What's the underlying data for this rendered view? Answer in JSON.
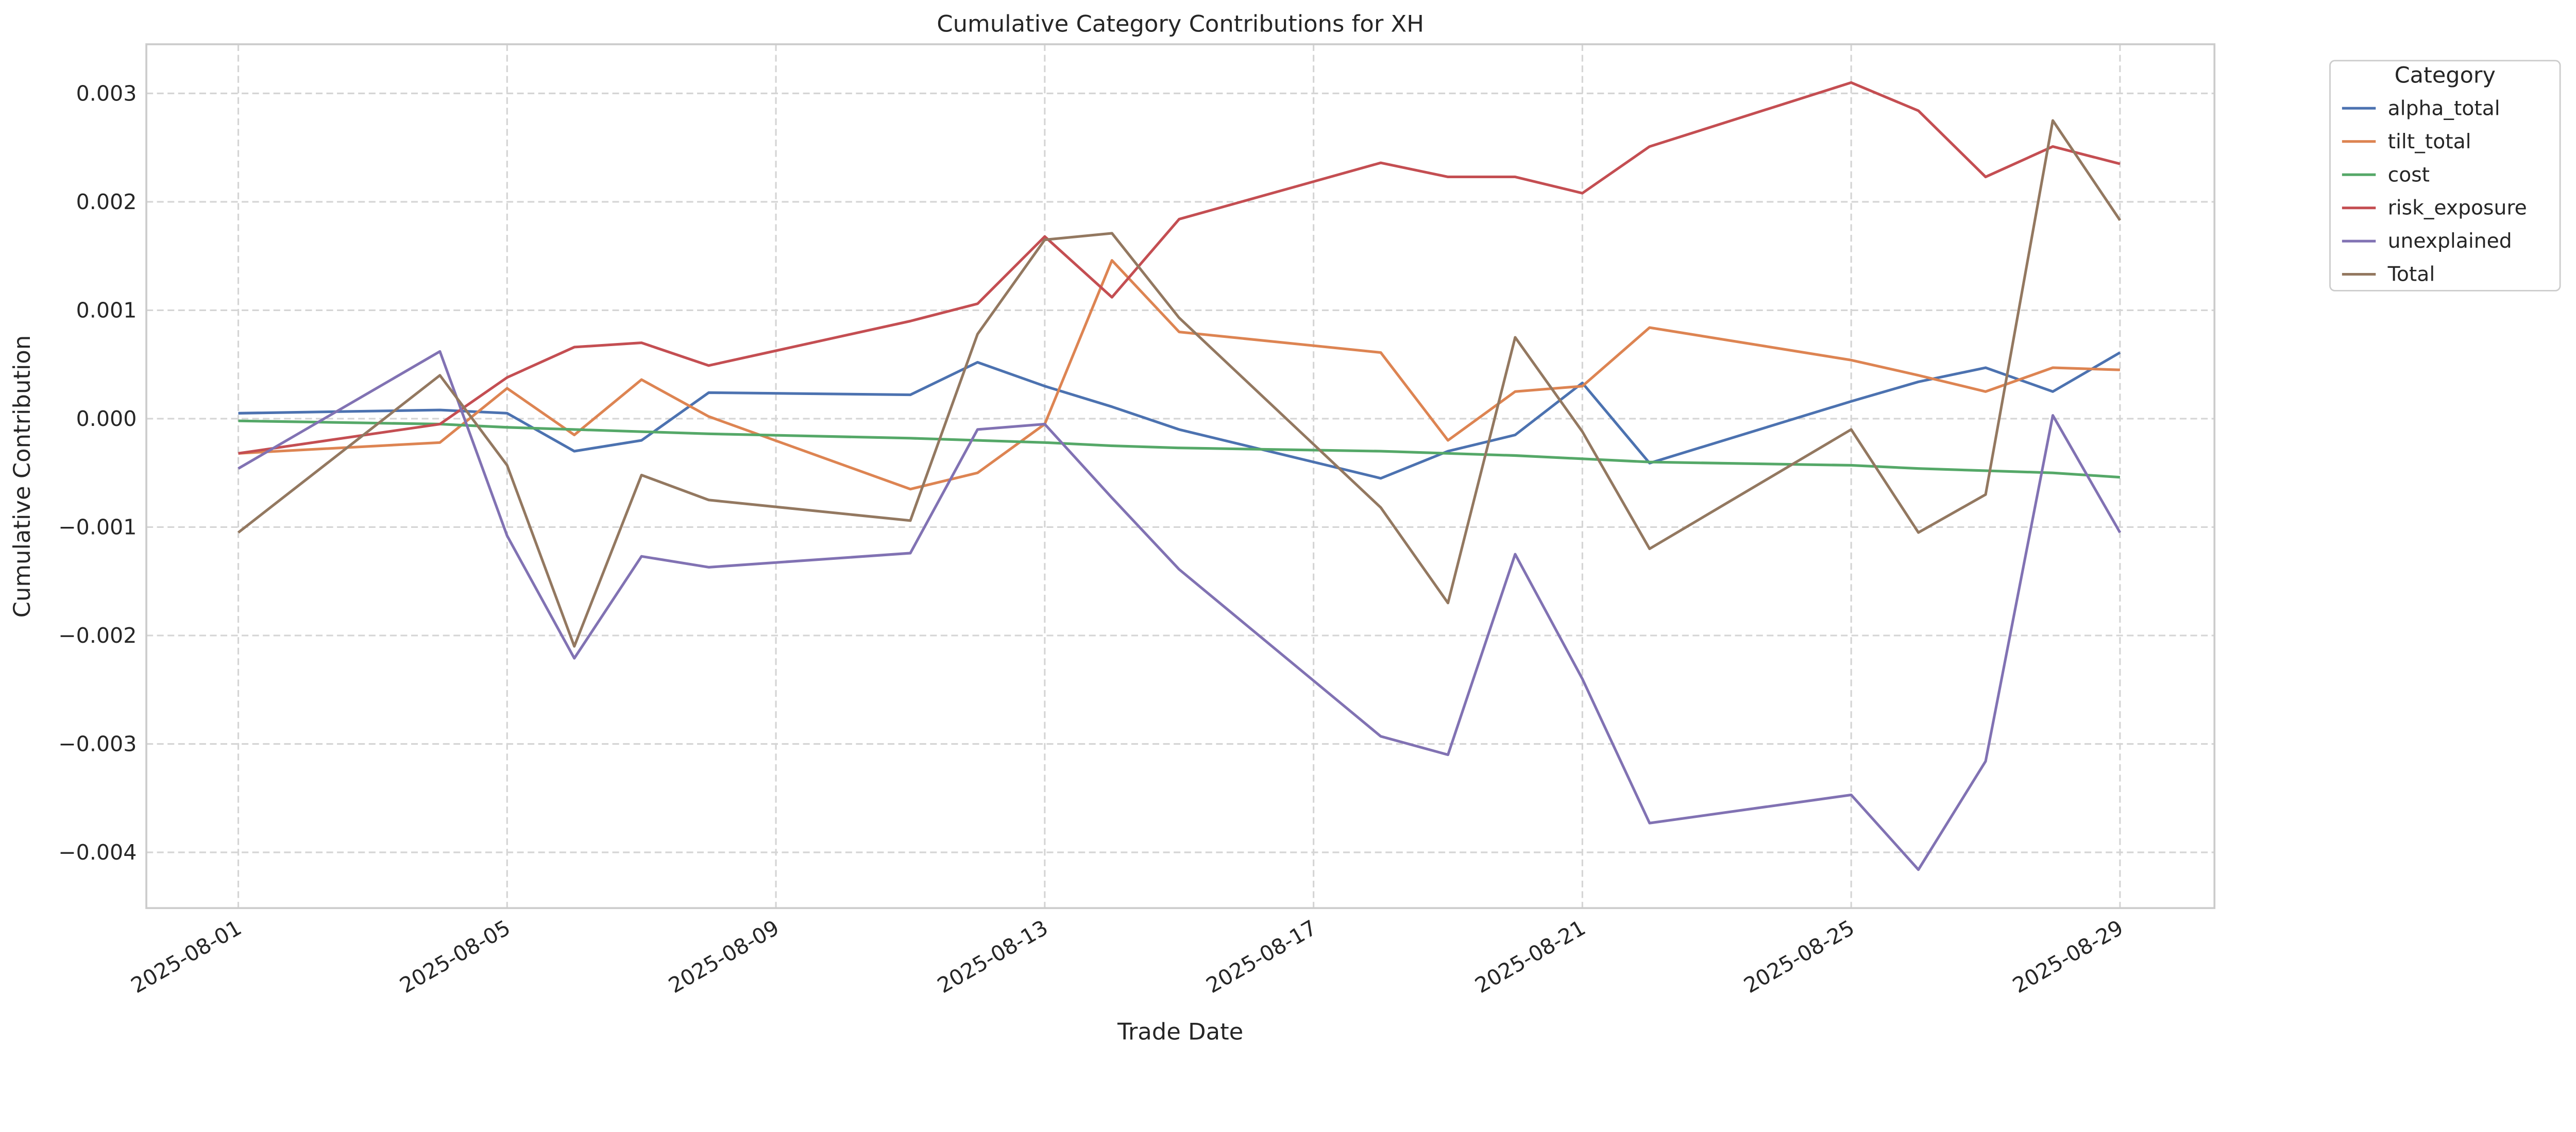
{
  "chart_data": {
    "type": "line",
    "title": "Cumulative Category Contributions for XH",
    "xlabel": "Trade Date",
    "ylabel": "Cumulative Contribution",
    "ylim": [
      -0.00453,
      0.00345
    ],
    "yticks": [
      -0.004,
      -0.003,
      -0.002,
      -0.001,
      0.0,
      0.001,
      0.002,
      0.003
    ],
    "ytick_labels": [
      "−0.004",
      "−0.003",
      "−0.002",
      "−0.001",
      "0.000",
      "0.001",
      "0.002",
      "0.003"
    ],
    "xticks": [
      "2025-08-01",
      "2025-08-05",
      "2025-08-09",
      "2025-08-13",
      "2025-08-17",
      "2025-08-21",
      "2025-08-25",
      "2025-08-29"
    ],
    "grid": true,
    "legend_title": "Category",
    "legend_position": "outside-top-right",
    "x": [
      "2025-08-01",
      "2025-08-04",
      "2025-08-05",
      "2025-08-06",
      "2025-08-07",
      "2025-08-08",
      "2025-08-11",
      "2025-08-12",
      "2025-08-13",
      "2025-08-14",
      "2025-08-15",
      "2025-08-18",
      "2025-08-19",
      "2025-08-20",
      "2025-08-21",
      "2025-08-22",
      "2025-08-25",
      "2025-08-26",
      "2025-08-27",
      "2025-08-28",
      "2025-08-29"
    ],
    "series": [
      {
        "name": "alpha_total",
        "color": "#4c72b0",
        "values": [
          5e-05,
          8e-05,
          5e-05,
          -0.0003,
          -0.0002,
          0.00024,
          0.00022,
          0.00052,
          0.0003,
          0.00011,
          -0.0001,
          -0.00055,
          -0.0003,
          -0.00015,
          0.00033,
          -0.00041,
          0.00016,
          0.00034,
          0.00047,
          0.00025,
          0.00061
        ]
      },
      {
        "name": "tilt_total",
        "color": "#dd8452",
        "values": [
          -0.00032,
          -0.00022,
          0.00028,
          -0.00015,
          0.00036,
          2e-05,
          -0.00065,
          -0.0005,
          -5e-05,
          0.00146,
          0.0008,
          0.00061,
          -0.0002,
          0.00025,
          0.0003,
          0.00084,
          0.00054,
          0.0004,
          0.00025,
          0.00047,
          0.00045
        ]
      },
      {
        "name": "cost",
        "color": "#55a868",
        "values": [
          -2e-05,
          -5e-05,
          -8e-05,
          -0.0001,
          -0.00012,
          -0.00014,
          -0.00018,
          -0.0002,
          -0.00022,
          -0.00025,
          -0.00027,
          -0.0003,
          -0.00032,
          -0.00034,
          -0.00037,
          -0.0004,
          -0.00043,
          -0.00046,
          -0.00048,
          -0.0005,
          -0.00054
        ]
      },
      {
        "name": "risk_exposure",
        "color": "#c44e52",
        "values": [
          -0.00032,
          -5e-05,
          0.00038,
          0.00066,
          0.0007,
          0.00049,
          0.0009,
          0.00106,
          0.00168,
          0.00112,
          0.00184,
          0.00236,
          0.00223,
          0.00223,
          0.00208,
          0.00251,
          0.0031,
          0.00284,
          0.00223,
          0.00251,
          0.00235
        ]
      },
      {
        "name": "unexplained",
        "color": "#8172b3",
        "values": [
          -0.00046,
          0.00062,
          -0.00108,
          -0.00221,
          -0.00127,
          -0.00137,
          -0.00124,
          -0.0001,
          -5e-05,
          -0.00073,
          -0.00139,
          -0.00293,
          -0.0031,
          -0.00125,
          -0.0024,
          -0.00373,
          -0.00347,
          -0.00416,
          -0.00316,
          3e-05,
          -0.00105
        ]
      },
      {
        "name": "Total",
        "color": "#937860",
        "values": [
          -0.00105,
          0.0004,
          -0.00043,
          -0.0021,
          -0.00052,
          -0.00075,
          -0.00094,
          0.00078,
          0.00165,
          0.00171,
          0.00093,
          -0.00082,
          -0.0017,
          0.00075,
          -0.00012,
          -0.0012,
          -0.0001,
          -0.00105,
          -0.0007,
          0.00275,
          0.00183
        ]
      }
    ]
  }
}
